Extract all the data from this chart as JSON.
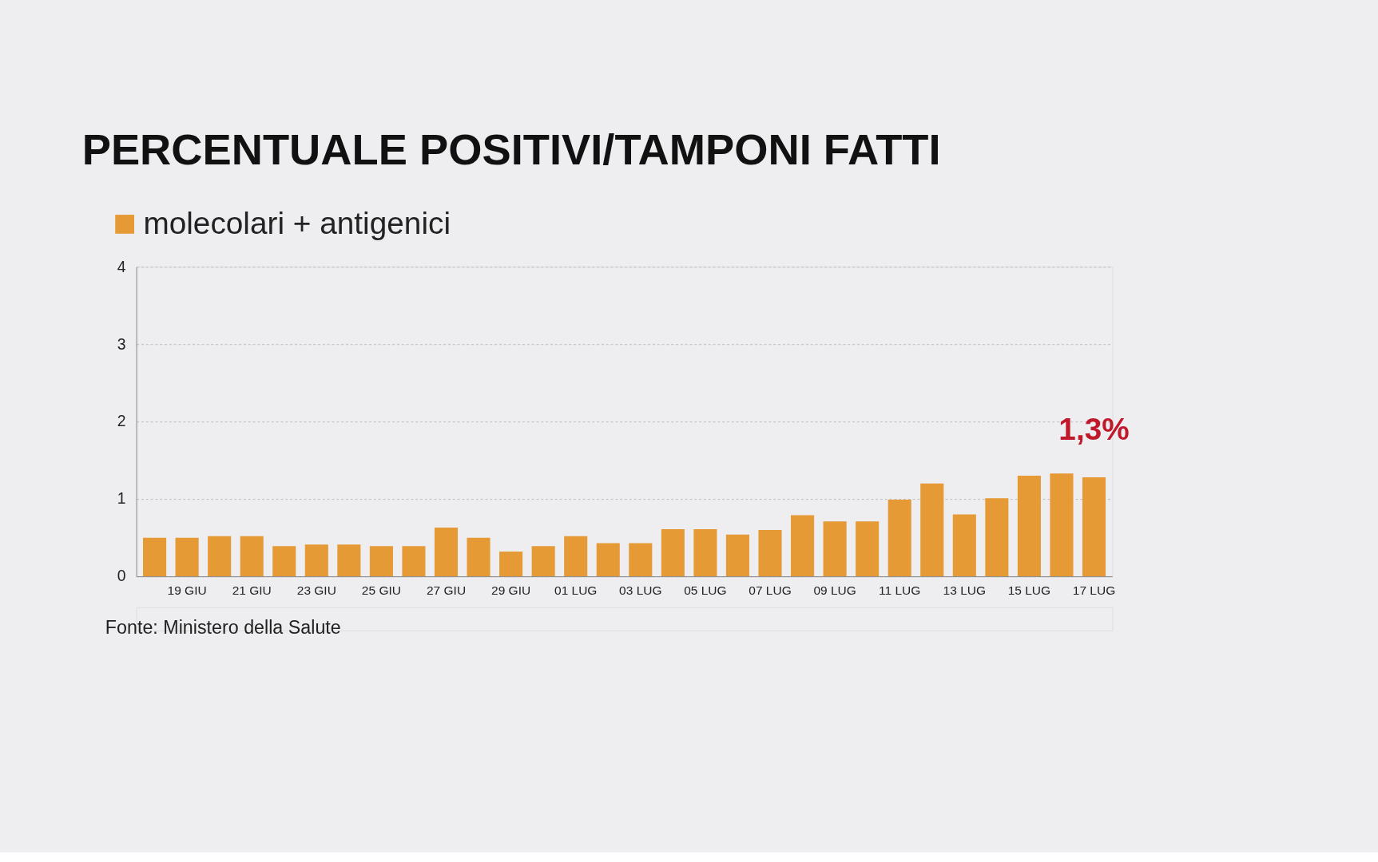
{
  "chart_data": {
    "type": "bar",
    "title": "PERCENTUALE POSITIVI/TAMPONI FATTI",
    "categories": [
      null,
      "19 GIU",
      null,
      "21 GIU",
      null,
      "23 GIU",
      null,
      "25 GIU",
      null,
      "27 GIU",
      null,
      "29 GIU",
      null,
      "01 LUG",
      null,
      "03 LUG",
      null,
      "05 LUG",
      null,
      "07 LUG",
      null,
      "09 LUG",
      null,
      "11 LUG",
      null,
      "13 LUG",
      null,
      "15 LUG",
      null,
      "17 LUG"
    ],
    "series": [
      {
        "name": "molecolari + antigenici",
        "color": "#e59a35",
        "values": [
          0.5,
          0.5,
          0.52,
          0.52,
          0.39,
          0.41,
          0.41,
          0.39,
          0.39,
          0.63,
          0.5,
          0.32,
          0.39,
          0.52,
          0.43,
          0.43,
          0.61,
          0.61,
          0.54,
          0.6,
          0.79,
          0.71,
          0.71,
          0.99,
          1.2,
          0.8,
          1.01,
          1.3,
          1.33,
          1.28
        ],
        "value_labels": [
          null,
          null,
          null,
          null,
          null,
          null,
          null,
          null,
          null,
          null,
          null,
          null,
          null,
          null,
          null,
          null,
          null,
          null,
          null,
          null,
          null,
          null,
          null,
          null,
          null,
          null,
          null,
          null,
          null,
          "1,3%"
        ]
      }
    ],
    "ylim": [
      0,
      4
    ],
    "yticks": [
      0,
      1,
      2,
      3,
      4
    ],
    "grid": "y",
    "legend": "top left",
    "annotations": [
      "Fonte: Ministero della Salute"
    ]
  }
}
